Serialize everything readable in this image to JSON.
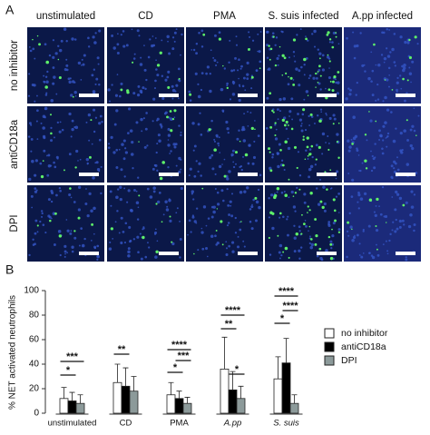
{
  "panel_a": {
    "label": "A",
    "columns": [
      "unstimulated",
      "CD",
      "PMA",
      "S. suis infected",
      "A.pp infected"
    ],
    "rows": [
      "no inhibitor",
      "antiCD18a",
      "DPI"
    ]
  },
  "chart_data": {
    "type": "bar",
    "label": "B",
    "y_label": "% NET activated neutrophils",
    "categories": [
      "unstimulated",
      "CD",
      "PMA",
      "A.pp",
      "S. suis"
    ],
    "series": [
      {
        "name": "no inhibitor",
        "color": "#ffffff",
        "values": [
          12,
          25,
          15,
          36,
          28
        ],
        "errors": [
          9,
          15,
          10,
          26,
          18
        ]
      },
      {
        "name": "antiCD18a",
        "color": "#000000",
        "values": [
          10,
          22,
          12,
          19,
          41
        ],
        "errors": [
          7,
          15,
          6,
          15,
          20
        ]
      },
      {
        "name": "DPI",
        "color": "#8c9a9a",
        "values": [
          8,
          18,
          8,
          12,
          8
        ],
        "errors": [
          7,
          12,
          5,
          10,
          7
        ]
      }
    ],
    "ylim": [
      0,
      100
    ],
    "yticks": [
      0,
      20,
      40,
      60,
      80,
      100
    ],
    "annotations": [
      "***",
      "*",
      "**",
      "****",
      "***",
      "*",
      "****",
      "**",
      "*",
      "****",
      "****",
      "*"
    ]
  }
}
